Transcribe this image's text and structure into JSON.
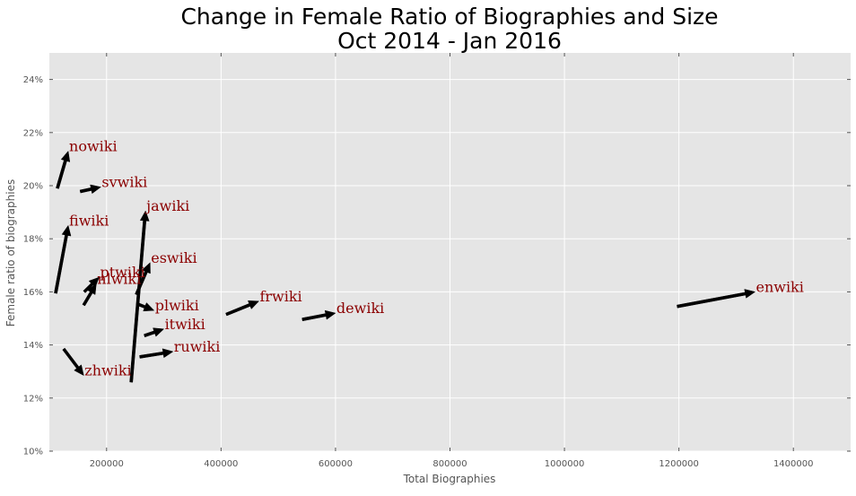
{
  "chart_data": {
    "type": "scatter",
    "title_lines": [
      "Change in Female Ratio of Biographies and Size",
      "Oct 2014 - Jan 2016"
    ],
    "xlabel": "Total Biographies",
    "ylabel": "Female ratio of biographies",
    "xlim": [
      100000,
      1500000
    ],
    "ylim": [
      0.1,
      0.25
    ],
    "x_ticks": [
      200000,
      400000,
      600000,
      800000,
      1000000,
      1200000,
      1400000
    ],
    "x_tick_labels": [
      "200000",
      "400000",
      "600000",
      "800000",
      "1000000",
      "1200000",
      "1400000"
    ],
    "y_ticks": [
      0.1,
      0.12,
      0.14,
      0.16,
      0.18,
      0.2,
      0.22,
      0.24
    ],
    "y_tick_labels": [
      "10%",
      "12%",
      "14%",
      "16%",
      "18%",
      "20%",
      "22%",
      "24%"
    ],
    "grid": true,
    "background_color": "#e5e5e5",
    "grid_color": "#ffffff",
    "arrow_color": "#000000",
    "label_color": "#8b0000",
    "series": [
      {
        "label": "enwiki",
        "x0": 1197000,
        "y0": 0.1545,
        "x1": 1333000,
        "y1": 0.16
      },
      {
        "label": "dewiki",
        "x0": 542000,
        "y0": 0.1496,
        "x1": 600000,
        "y1": 0.152
      },
      {
        "label": "frwiki",
        "x0": 409000,
        "y0": 0.1515,
        "x1": 466000,
        "y1": 0.1565
      },
      {
        "label": "ruwiki",
        "x0": 258000,
        "y0": 0.1355,
        "x1": 316000,
        "y1": 0.1375
      },
      {
        "label": "itwiki",
        "x0": 266000,
        "y0": 0.1435,
        "x1": 300000,
        "y1": 0.146
      },
      {
        "label": "plwiki",
        "x0": 253000,
        "y0": 0.1555,
        "x1": 283000,
        "y1": 0.153
      },
      {
        "label": "eswiki",
        "x0": 252000,
        "y0": 0.159,
        "x1": 276000,
        "y1": 0.171
      },
      {
        "label": "jawiki",
        "x0": 243000,
        "y0": 0.126,
        "x1": 268000,
        "y1": 0.1905
      },
      {
        "label": "nlwiki",
        "x0": 160000,
        "y0": 0.155,
        "x1": 182000,
        "y1": 0.163
      },
      {
        "label": "ptwiki",
        "x0": 161000,
        "y0": 0.16,
        "x1": 187000,
        "y1": 0.1655
      },
      {
        "label": "zhwiki",
        "x0": 125000,
        "y0": 0.1385,
        "x1": 160000,
        "y1": 0.1285
      },
      {
        "label": "svwiki",
        "x0": 154000,
        "y0": 0.1978,
        "x1": 190000,
        "y1": 0.1995
      },
      {
        "label": "nowiki",
        "x0": 114000,
        "y0": 0.199,
        "x1": 133000,
        "y1": 0.213
      },
      {
        "label": "fiwiki",
        "x0": 111000,
        "y0": 0.1595,
        "x1": 133000,
        "y1": 0.185
      }
    ]
  }
}
